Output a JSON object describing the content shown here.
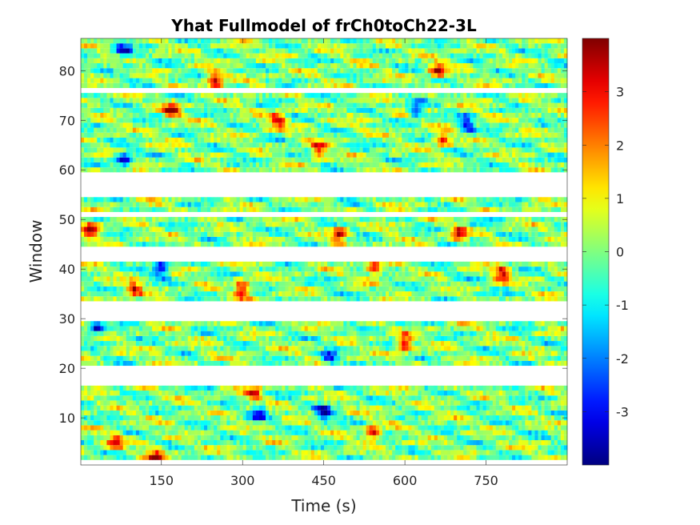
{
  "chart_data": {
    "type": "heatmap",
    "title": "Yhat Fullmodel of frCh0toCh22-3L",
    "xlabel": "Time (s)",
    "ylabel": "Window",
    "xlim": [
      1,
      900
    ],
    "ylim": [
      0.5,
      86.5
    ],
    "x_ticks": [
      150,
      300,
      450,
      600,
      750
    ],
    "x_tick_labels": [
      "150",
      "300",
      "450",
      "600",
      "750"
    ],
    "y_ticks": [
      10,
      20,
      30,
      40,
      50,
      60,
      70,
      80
    ],
    "y_tick_labels": [
      "10",
      "20",
      "30",
      "40",
      "50",
      "60",
      "70",
      "80"
    ],
    "colorbar": {
      "colormap": "jet",
      "range": [
        -4,
        4
      ],
      "ticks": [
        -3,
        -2,
        -1,
        0,
        1,
        2,
        3
      ],
      "tick_labels": [
        "-3",
        "-2",
        "-1",
        "0",
        "1",
        "2",
        "3"
      ]
    },
    "empty_windows": [
      [
        1,
        1
      ],
      [
        17,
        20
      ],
      [
        30,
        33
      ],
      [
        42,
        44
      ],
      [
        51,
        51
      ],
      [
        55,
        59
      ],
      [
        76,
        76
      ]
    ],
    "populated_windows": [
      [
        2,
        16
      ],
      [
        21,
        29
      ],
      [
        34,
        41
      ],
      [
        45,
        50
      ],
      [
        52,
        54
      ],
      [
        60,
        75
      ],
      [
        77,
        86
      ]
    ],
    "hotspots": [
      {
        "x": 140,
        "y": 2,
        "value": 3.9
      },
      {
        "x": 65,
        "y": 5,
        "value": 3.0
      },
      {
        "x": 320,
        "y": 15,
        "value": 3.1
      },
      {
        "x": 330,
        "y": 11,
        "value": -2.8
      },
      {
        "x": 450,
        "y": 11,
        "value": -3.2
      },
      {
        "x": 540,
        "y": 7,
        "value": 3.2
      },
      {
        "x": 600,
        "y": 25,
        "value": 3.6
      },
      {
        "x": 460,
        "y": 22,
        "value": -3.0
      },
      {
        "x": 30,
        "y": 28,
        "value": -3.0
      },
      {
        "x": 300,
        "y": 36,
        "value": 3.8
      },
      {
        "x": 150,
        "y": 40,
        "value": -3.3
      },
      {
        "x": 100,
        "y": 36,
        "value": 3.0
      },
      {
        "x": 545,
        "y": 40,
        "value": 3.4
      },
      {
        "x": 780,
        "y": 39,
        "value": 3.5
      },
      {
        "x": 480,
        "y": 47,
        "value": 3.6
      },
      {
        "x": 20,
        "y": 48,
        "value": 3.9
      },
      {
        "x": 700,
        "y": 47,
        "value": 3.3
      },
      {
        "x": 365,
        "y": 70,
        "value": 3.4
      },
      {
        "x": 170,
        "y": 72,
        "value": 3.7
      },
      {
        "x": 440,
        "y": 64,
        "value": 3.1
      },
      {
        "x": 80,
        "y": 62,
        "value": -3.2
      },
      {
        "x": 670,
        "y": 66,
        "value": 3.0
      },
      {
        "x": 715,
        "y": 69,
        "value": -3.0
      },
      {
        "x": 620,
        "y": 72,
        "value": -2.8
      },
      {
        "x": 250,
        "y": 78,
        "value": 3.8
      },
      {
        "x": 660,
        "y": 80,
        "value": 3.7
      },
      {
        "x": 80,
        "y": 84,
        "value": -3.0
      }
    ],
    "grid": false,
    "legend": "none"
  }
}
